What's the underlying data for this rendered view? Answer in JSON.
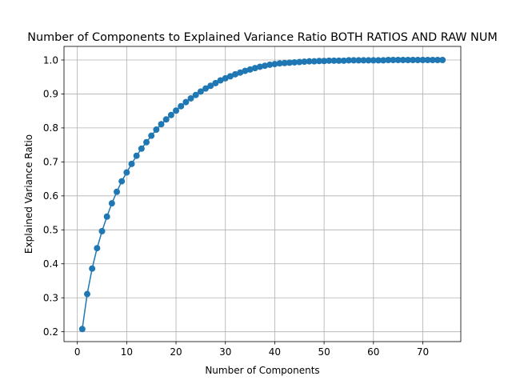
{
  "chart_data": {
    "type": "line",
    "title": "Number of Components to Explained Variance Ratio BOTH RATIOS AND RAW NUM",
    "xlabel": "Number of Components",
    "ylabel": "Explained Variance Ratio",
    "xlim": [
      -2.7,
      77.7
    ],
    "ylim": [
      0.171,
      1.04
    ],
    "xticks": [
      0,
      10,
      20,
      30,
      40,
      50,
      60,
      70
    ],
    "yticks": [
      0.2,
      0.3,
      0.4,
      0.5,
      0.6,
      0.7,
      0.8,
      0.9,
      1.0
    ],
    "ytick_labels": [
      "0.2",
      "0.3",
      "0.4",
      "0.5",
      "0.6",
      "0.7",
      "0.8",
      "0.9",
      "1.0"
    ],
    "grid": true,
    "color": "#1f77b4",
    "marker": "circle",
    "series": [
      {
        "x": [
          1,
          2,
          3,
          4,
          5,
          6,
          7,
          8,
          9,
          10,
          11,
          12,
          13,
          14,
          15,
          16,
          17,
          18,
          19,
          20,
          21,
          22,
          23,
          24,
          25,
          26,
          27,
          28,
          29,
          30,
          31,
          32,
          33,
          34,
          35,
          36,
          37,
          38,
          39,
          40,
          41,
          42,
          43,
          44,
          45,
          46,
          47,
          48,
          49,
          50,
          51,
          52,
          53,
          54,
          55,
          56,
          57,
          58,
          59,
          60,
          61,
          62,
          63,
          64,
          65,
          66,
          67,
          68,
          69,
          70,
          71,
          72,
          73,
          74
        ],
        "values": [
          0.208,
          0.311,
          0.386,
          0.446,
          0.496,
          0.539,
          0.578,
          0.612,
          0.643,
          0.669,
          0.694,
          0.718,
          0.739,
          0.758,
          0.777,
          0.795,
          0.811,
          0.825,
          0.838,
          0.851,
          0.864,
          0.876,
          0.887,
          0.897,
          0.907,
          0.916,
          0.924,
          0.932,
          0.94,
          0.946,
          0.952,
          0.958,
          0.963,
          0.968,
          0.972,
          0.976,
          0.98,
          0.983,
          0.986,
          0.988,
          0.99,
          0.991,
          0.992,
          0.993,
          0.994,
          0.995,
          0.996,
          0.996,
          0.997,
          0.997,
          0.998,
          0.998,
          0.998,
          0.998,
          0.999,
          0.999,
          0.999,
          0.999,
          0.999,
          0.999,
          0.999,
          0.999,
          1.0,
          1.0,
          1.0,
          1.0,
          1.0,
          1.0,
          1.0,
          1.0,
          1.0,
          1.0,
          1.0,
          1.0
        ]
      }
    ]
  }
}
